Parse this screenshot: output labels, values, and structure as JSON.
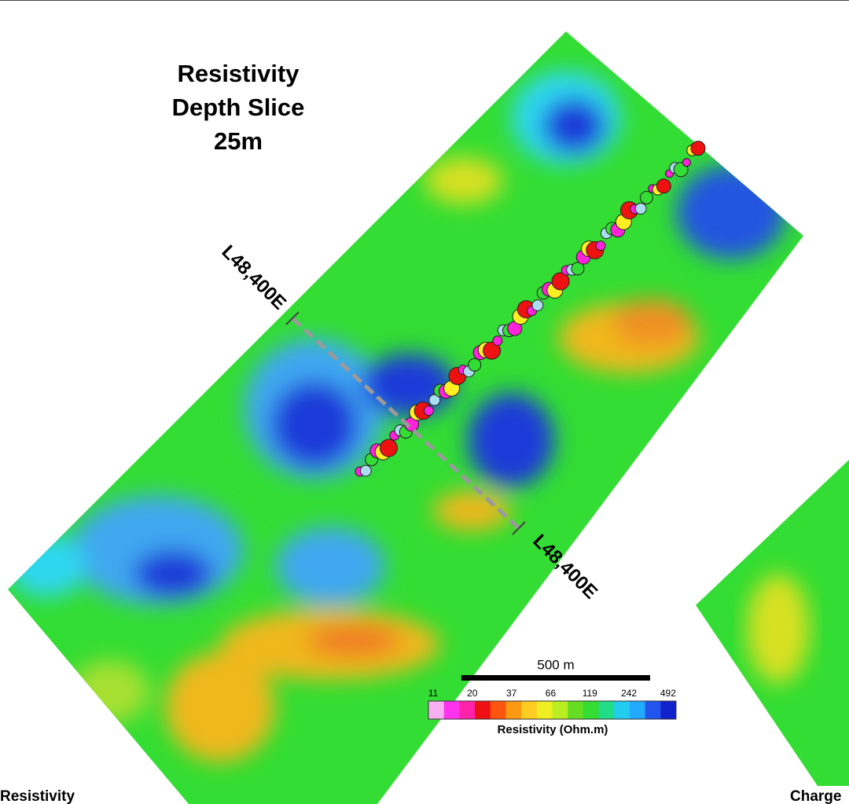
{
  "title": {
    "lines": [
      "Resistivity",
      "Depth Slice",
      "25m"
    ]
  },
  "section_labels": [
    "L48,400E",
    "L48,400E"
  ],
  "scale_bar": {
    "label": "500 m"
  },
  "legend": {
    "title": "Resistivity (Ohm.m)",
    "ticks": [
      "11",
      "20",
      "37",
      "66",
      "119",
      "242",
      "492"
    ]
  },
  "footer": {
    "left": "Resistivity",
    "right": "Charge"
  }
}
